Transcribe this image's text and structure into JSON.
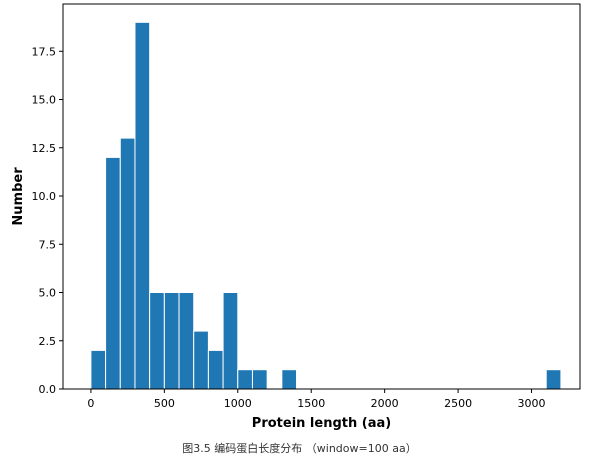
{
  "figure": {
    "caption": "图3.5 编码蛋白长度分布 （window=100 aa）"
  },
  "chart_data": {
    "type": "bar",
    "xlabel": "Protein length (aa)",
    "ylabel": "Number",
    "xlim": [
      -190,
      3330
    ],
    "ylim": [
      0,
      19.95
    ],
    "xticks": [
      0,
      500,
      1000,
      1500,
      2000,
      2500,
      3000
    ],
    "yticks": [
      0.0,
      2.5,
      5.0,
      7.5,
      10.0,
      12.5,
      15.0,
      17.5
    ],
    "ytick_labels": [
      "0.0",
      "2.5",
      "5.0",
      "7.5",
      "10.0",
      "12.5",
      "15.0",
      "17.5"
    ],
    "bin_width": 100,
    "bar_color": "#1f77b4",
    "bins": [
      {
        "x": 0,
        "value": 2
      },
      {
        "x": 100,
        "value": 12
      },
      {
        "x": 200,
        "value": 13
      },
      {
        "x": 300,
        "value": 19
      },
      {
        "x": 400,
        "value": 5
      },
      {
        "x": 500,
        "value": 5
      },
      {
        "x": 600,
        "value": 5
      },
      {
        "x": 700,
        "value": 3
      },
      {
        "x": 800,
        "value": 2
      },
      {
        "x": 900,
        "value": 5
      },
      {
        "x": 1000,
        "value": 1
      },
      {
        "x": 1100,
        "value": 1
      },
      {
        "x": 1300,
        "value": 1
      },
      {
        "x": 3100,
        "value": 1
      }
    ],
    "grid": false,
    "legend": "none"
  }
}
